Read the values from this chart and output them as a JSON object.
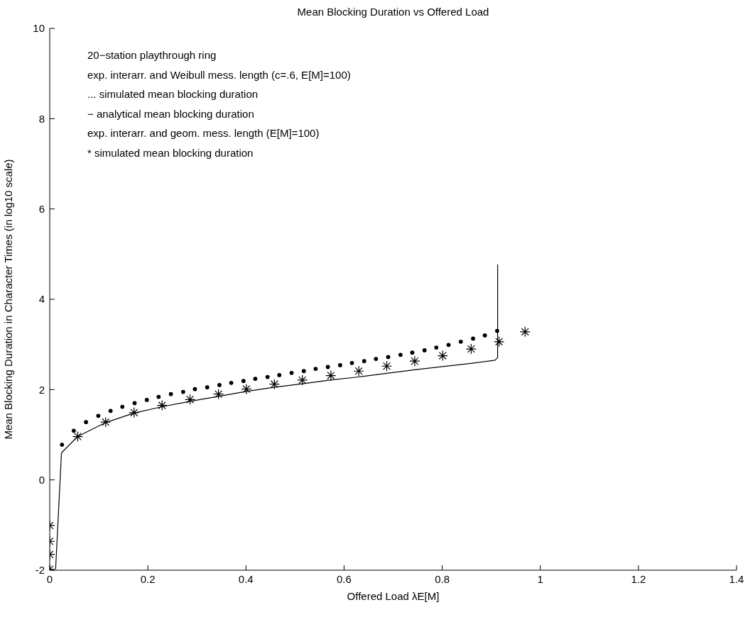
{
  "chart_data": {
    "type": "scatter",
    "title": "Mean Blocking Duration vs Offered Load",
    "xlabel": "Offered Load λE[M]",
    "ylabel": "Mean Blocking Duration in Character Times (in log10 scale)",
    "annotations": [
      "20−station playthrough ring",
      "exp. interarr. and Weibull mess. length (c=.6, E[M]=100)",
      "... simulated mean blocking duration",
      "− analytical mean blocking duration",
      "exp. interarr. and geom. mess. length (E[M]=100)",
      "* simulated mean blocking duration"
    ],
    "xlim": [
      0,
      1.4
    ],
    "xticks": [
      0,
      0.2,
      0.4,
      0.6,
      0.8,
      1,
      1.2,
      1.4
    ],
    "ylim": [
      -2,
      10
    ],
    "yticks": [
      -2,
      0,
      2,
      4,
      6,
      8,
      10
    ],
    "grid": false,
    "series": [
      {
        "marker": "circle",
        "color": "#000000",
        "x": [
          0.025,
          0.049,
          0.074,
          0.099,
          0.124,
          0.148,
          0.173,
          0.198,
          0.222,
          0.247,
          0.272,
          0.296,
          0.321,
          0.346,
          0.37,
          0.395,
          0.419,
          0.444,
          0.468,
          0.493,
          0.518,
          0.542,
          0.567,
          0.592,
          0.616,
          0.641,
          0.665,
          0.69,
          0.715,
          0.739,
          0.764,
          0.788,
          0.813,
          0.838,
          0.863,
          0.887,
          0.912
        ],
        "values": [
          0.78,
          1.09,
          1.28,
          1.42,
          1.53,
          1.62,
          1.7,
          1.77,
          1.84,
          1.9,
          1.95,
          2.01,
          2.05,
          2.1,
          2.15,
          2.19,
          2.24,
          2.28,
          2.32,
          2.37,
          2.41,
          2.46,
          2.5,
          2.54,
          2.59,
          2.63,
          2.68,
          2.72,
          2.77,
          2.82,
          2.87,
          2.93,
          2.99,
          3.06,
          3.13,
          3.2,
          3.3
        ]
      },
      {
        "type": "line",
        "marker": "none",
        "line_style": "solid",
        "color": "#000000",
        "x": [
          0.012,
          0.024,
          0.057,
          0.114,
          0.172,
          0.229,
          0.286,
          0.344,
          0.401,
          0.457,
          0.515,
          0.572,
          0.63,
          0.687,
          0.744,
          0.801,
          0.859,
          0.908,
          0.913,
          0.913
        ],
        "values": [
          -1.98,
          0.6,
          0.96,
          1.27,
          1.48,
          1.62,
          1.74,
          1.85,
          1.96,
          2.05,
          2.13,
          2.21,
          2.28,
          2.36,
          2.44,
          2.51,
          2.58,
          2.65,
          2.71,
          4.77
        ]
      },
      {
        "marker": "cross",
        "color": "#000000",
        "x": [
          0,
          0,
          0,
          0,
          0.057,
          0.114,
          0.172,
          0.229,
          0.286,
          0.344,
          0.401,
          0.458,
          0.515,
          0.573,
          0.63,
          0.687,
          0.744,
          0.801,
          0.859,
          0.916,
          0.969
        ],
        "values": [
          -1.98,
          -1.65,
          -1.36,
          -1.01,
          0.96,
          1.28,
          1.49,
          1.65,
          1.78,
          1.9,
          2.01,
          2.12,
          2.21,
          2.31,
          2.41,
          2.52,
          2.63,
          2.75,
          2.9,
          3.06,
          3.28
        ]
      }
    ]
  }
}
